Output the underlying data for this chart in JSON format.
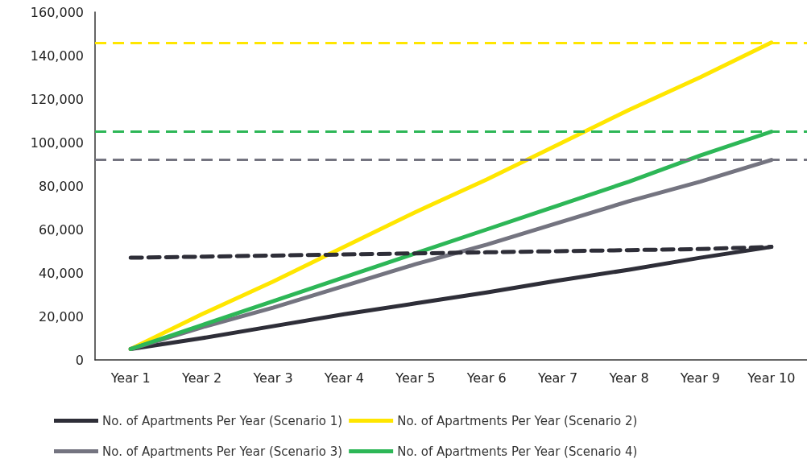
{
  "chart_data": {
    "type": "line",
    "categories": [
      "Year 1",
      "Year 2",
      "Year 3",
      "Year 4",
      "Year 5",
      "Year 6",
      "Year 7",
      "Year 8",
      "Year 9",
      "Year 10"
    ],
    "series": [
      {
        "name": "No. of Apartments Per Year (Scenario 1)",
        "color": "#2e2e38",
        "values": [
          5000,
          10000,
          15500,
          21000,
          26000,
          31000,
          36500,
          41500,
          47000,
          52000
        ]
      },
      {
        "name": "No. of Apartments Per Year (Scenario 2)",
        "color": "#ffe600",
        "values": [
          5000,
          21000,
          36000,
          52000,
          68000,
          83000,
          99000,
          115000,
          130000,
          146000
        ]
      },
      {
        "name": "No. of Apartments Per Year (Scenario 3)",
        "color": "#747480",
        "values": [
          5000,
          15000,
          24000,
          34000,
          44000,
          53000,
          63000,
          73000,
          82000,
          92000
        ]
      },
      {
        "name": "No. of Apartments Per Year (Scenario 4)",
        "color": "#2db757",
        "values": [
          5000,
          16000,
          27000,
          38000,
          49000,
          60000,
          71000,
          82000,
          94000,
          105000
        ]
      },
      {
        "color": "#2e2e38",
        "line_style": "dashed",
        "values": [
          47000,
          47500,
          48000,
          48500,
          49000,
          49500,
          50000,
          50500,
          51000,
          52000
        ]
      }
    ],
    "ref_lines": [
      {
        "axis": "y",
        "value": 146000,
        "color": "#ffe600",
        "line_style": "dashed"
      },
      {
        "axis": "y",
        "value": 105000,
        "color": "#2db757",
        "line_style": "dashed"
      },
      {
        "axis": "y",
        "value": 92000,
        "color": "#747480",
        "line_style": "dashed"
      }
    ],
    "ylim": [
      0,
      160000
    ],
    "yticks": [
      0,
      {
        "value": 20000,
        "label": "20,000"
      },
      {
        "value": 40000,
        "label": "40,000"
      },
      {
        "value": 60000,
        "label": "60,000"
      },
      {
        "value": 80000,
        "label": "80,000"
      },
      {
        "value": 100000,
        "label": "100,000"
      },
      {
        "value": 120000,
        "label": "120,000"
      },
      {
        "value": 140000,
        "label": "140,000"
      },
      {
        "value": 160000,
        "label": "160,000"
      }
    ],
    "grid": false,
    "legend": "bottom",
    "marker": "none",
    "line_style": "solid"
  }
}
